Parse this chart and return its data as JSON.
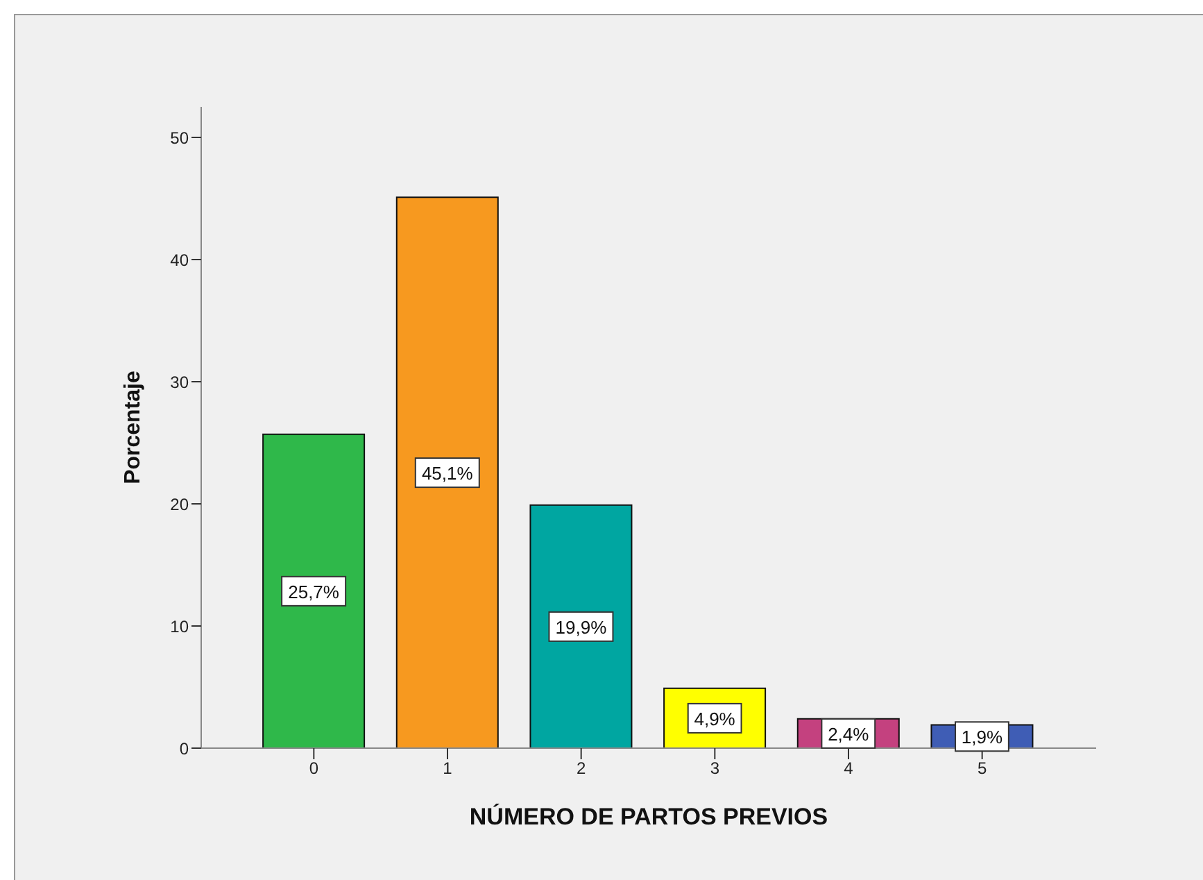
{
  "chart_data": {
    "type": "bar",
    "xlabel": "NÚMERO DE PARTOS PREVIOS",
    "ylabel": "Porcentaje",
    "categories": [
      "0",
      "1",
      "2",
      "3",
      "4",
      "5"
    ],
    "values": [
      25.7,
      45.1,
      19.9,
      4.9,
      2.4,
      1.9
    ],
    "colors": [
      "#2fb84a",
      "#f7991f",
      "#00a6a1",
      "#ffff00",
      "#c4417f",
      "#3f5db5"
    ],
    "value_labels": [
      "25,7%",
      "45,1%",
      "19,9%",
      "4,9%",
      "2,4%",
      "1,9%"
    ],
    "ylim": [
      0,
      52.5
    ],
    "yticks": [
      0,
      10,
      20,
      30,
      40,
      50
    ]
  }
}
